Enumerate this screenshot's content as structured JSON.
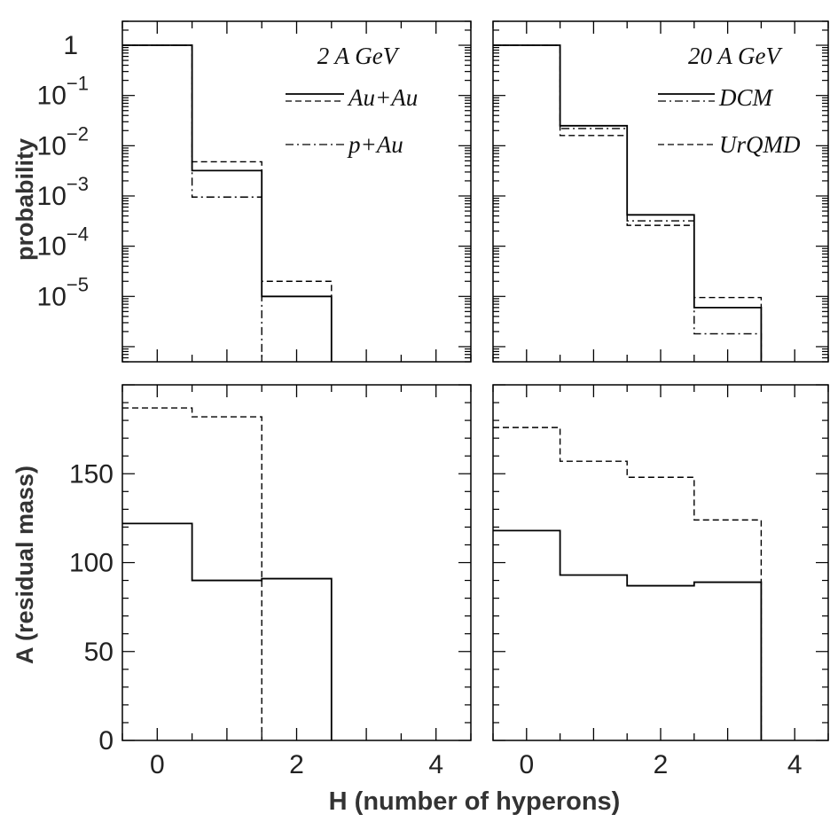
{
  "figure": {
    "xlabel": "H (number of hyperons)",
    "ylabel_top": "probability",
    "ylabel_bottom": "A (residual mass)"
  },
  "chart_data": [
    {
      "type": "line",
      "panel": "top-left",
      "title": "2 A GeV",
      "xlim": [
        -0.5,
        4.5
      ],
      "ylim": [
        5e-07,
        3
      ],
      "yscale": "log",
      "xticks": [
        0,
        2,
        4
      ],
      "ytick_labels": [
        "1",
        "10^-1",
        "10^-2",
        "10^-3",
        "10^-4",
        "10^-5"
      ],
      "legend": [
        {
          "label": "Au+Au",
          "styles": [
            "solid",
            "dashed"
          ]
        },
        {
          "label": "p+Au",
          "styles": [
            "dashdot"
          ]
        }
      ],
      "series": [
        {
          "style": "solid",
          "x": [
            0,
            1,
            2
          ],
          "values": [
            1.0,
            0.0032,
            1e-05
          ]
        },
        {
          "style": "dashed",
          "x": [
            0,
            1,
            2
          ],
          "values": [
            1.0,
            0.0048,
            2e-05
          ]
        },
        {
          "style": "dashdot",
          "x": [
            0,
            1
          ],
          "values": [
            1.0,
            0.00095
          ]
        }
      ]
    },
    {
      "type": "line",
      "panel": "top-right",
      "title": "20 A GeV",
      "xlim": [
        -0.5,
        4.5
      ],
      "ylim": [
        5e-07,
        3
      ],
      "yscale": "log",
      "xticks": [
        0,
        2,
        4
      ],
      "legend": [
        {
          "label": "DCM",
          "styles": [
            "solid",
            "dashdot"
          ]
        },
        {
          "label": "UrQMD",
          "styles": [
            "dashed"
          ]
        }
      ],
      "series": [
        {
          "style": "solid",
          "x": [
            0,
            1,
            2,
            3
          ],
          "values": [
            1.0,
            0.025,
            0.00042,
            6e-06
          ]
        },
        {
          "style": "dashdot",
          "x": [
            0,
            1,
            2,
            3
          ],
          "values": [
            1.0,
            0.022,
            0.00032,
            1.8e-06
          ]
        },
        {
          "style": "dashed",
          "x": [
            0,
            1,
            2,
            3
          ],
          "values": [
            1.0,
            0.016,
            0.00026,
            9.5e-06
          ]
        }
      ]
    },
    {
      "type": "line",
      "panel": "bottom-left",
      "xlim": [
        -0.5,
        4.5
      ],
      "ylim": [
        0,
        200
      ],
      "xticks": [
        0,
        2,
        4
      ],
      "yticks": [
        0,
        50,
        100,
        150
      ],
      "series": [
        {
          "style": "solid",
          "x": [
            0,
            1,
            2
          ],
          "values": [
            122,
            90,
            91
          ]
        },
        {
          "style": "dashed",
          "x": [
            0,
            1
          ],
          "values": [
            187,
            182
          ]
        }
      ]
    },
    {
      "type": "line",
      "panel": "bottom-right",
      "xlim": [
        -0.5,
        4.5
      ],
      "ylim": [
        0,
        200
      ],
      "xticks": [
        0,
        2,
        4
      ],
      "yticks": [
        0,
        50,
        100,
        150
      ],
      "series": [
        {
          "style": "solid",
          "x": [
            0,
            1,
            2,
            3
          ],
          "values": [
            118,
            93,
            87,
            89
          ]
        },
        {
          "style": "dashed",
          "x": [
            0,
            1,
            2,
            3
          ],
          "values": [
            176,
            157,
            148,
            124
          ]
        }
      ]
    }
  ]
}
